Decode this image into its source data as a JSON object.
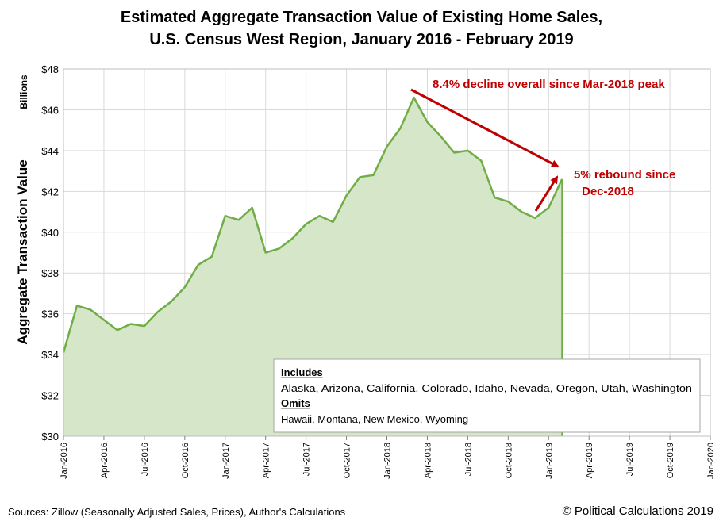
{
  "chart_data": {
    "type": "area",
    "title": "Estimated Aggregate Transaction Value of Existing Home Sales,",
    "subtitle": "U.S. Census West Region, January 2016 - February 2019",
    "ylabel": "Aggregate Transaction Value",
    "yunit": "Billions",
    "xlabel": "",
    "ylim": [
      30,
      48
    ],
    "xlim": [
      "2016-01",
      "2020-01"
    ],
    "y_ticks": [
      "$30",
      "$32",
      "$34",
      "$36",
      "$38",
      "$40",
      "$42",
      "$44",
      "$46",
      "$48"
    ],
    "x_ticks": [
      "Jan-2016",
      "Apr-2016",
      "Jul-2016",
      "Oct-2016",
      "Jan-2017",
      "Apr-2017",
      "Jul-2017",
      "Oct-2017",
      "Jan-2018",
      "Apr-2018",
      "Jul-2018",
      "Oct-2018",
      "Jan-2019",
      "Apr-2019",
      "Jul-2019",
      "Oct-2019",
      "Jan-2020"
    ],
    "grid": true,
    "series": [
      {
        "x": [
          "2016-01",
          "2016-02",
          "2016-03",
          "2016-04",
          "2016-05",
          "2016-06",
          "2016-07",
          "2016-08",
          "2016-09",
          "2016-10",
          "2016-11",
          "2016-12",
          "2017-01",
          "2017-02",
          "2017-03",
          "2017-04",
          "2017-05",
          "2017-06",
          "2017-07",
          "2017-08",
          "2017-09",
          "2017-10",
          "2017-11",
          "2017-12",
          "2018-01",
          "2018-02",
          "2018-03",
          "2018-04",
          "2018-05",
          "2018-06",
          "2018-07",
          "2018-08",
          "2018-09",
          "2018-10",
          "2018-11",
          "2018-12",
          "2019-01",
          "2019-02"
        ],
        "values": [
          34.1,
          36.4,
          36.2,
          35.7,
          35.2,
          35.5,
          35.4,
          36.1,
          36.6,
          37.3,
          38.4,
          38.8,
          40.8,
          40.6,
          41.2,
          39.0,
          39.2,
          39.7,
          40.4,
          40.8,
          40.5,
          41.8,
          42.7,
          42.8,
          44.2,
          45.1,
          46.6,
          45.4,
          44.7,
          43.9,
          44.0,
          43.5,
          41.7,
          41.5,
          41.0,
          40.7,
          41.2,
          42.6
        ],
        "color": "#70ad47",
        "fill": "#d6e6c9"
      }
    ],
    "annotations": [
      {
        "text": "8.4% decline overall since Mar-2018 peak",
        "color": "#c00000"
      },
      {
        "text_lines": [
          "5% rebound since",
          "Dec-2018"
        ],
        "color": "#c00000"
      }
    ],
    "legend": {
      "includes_heading": "Includes",
      "includes": "Alaska, Arizona, California, Colorado, Idaho, Nevada, Oregon, Utah, Washington",
      "omits_heading": "Omits",
      "omits": "Hawaii, Montana, New Mexico, Wyoming"
    }
  },
  "footer": {
    "sources": "Sources: Zillow (Seasonally Adjusted Sales, Prices), Author's Calculations",
    "copyright": "© Political Calculations 2019"
  },
  "colors": {
    "line": "#70ad47",
    "area": "#d6e6c9",
    "arrow": "#c00000",
    "grid": "#d9d9d9"
  }
}
